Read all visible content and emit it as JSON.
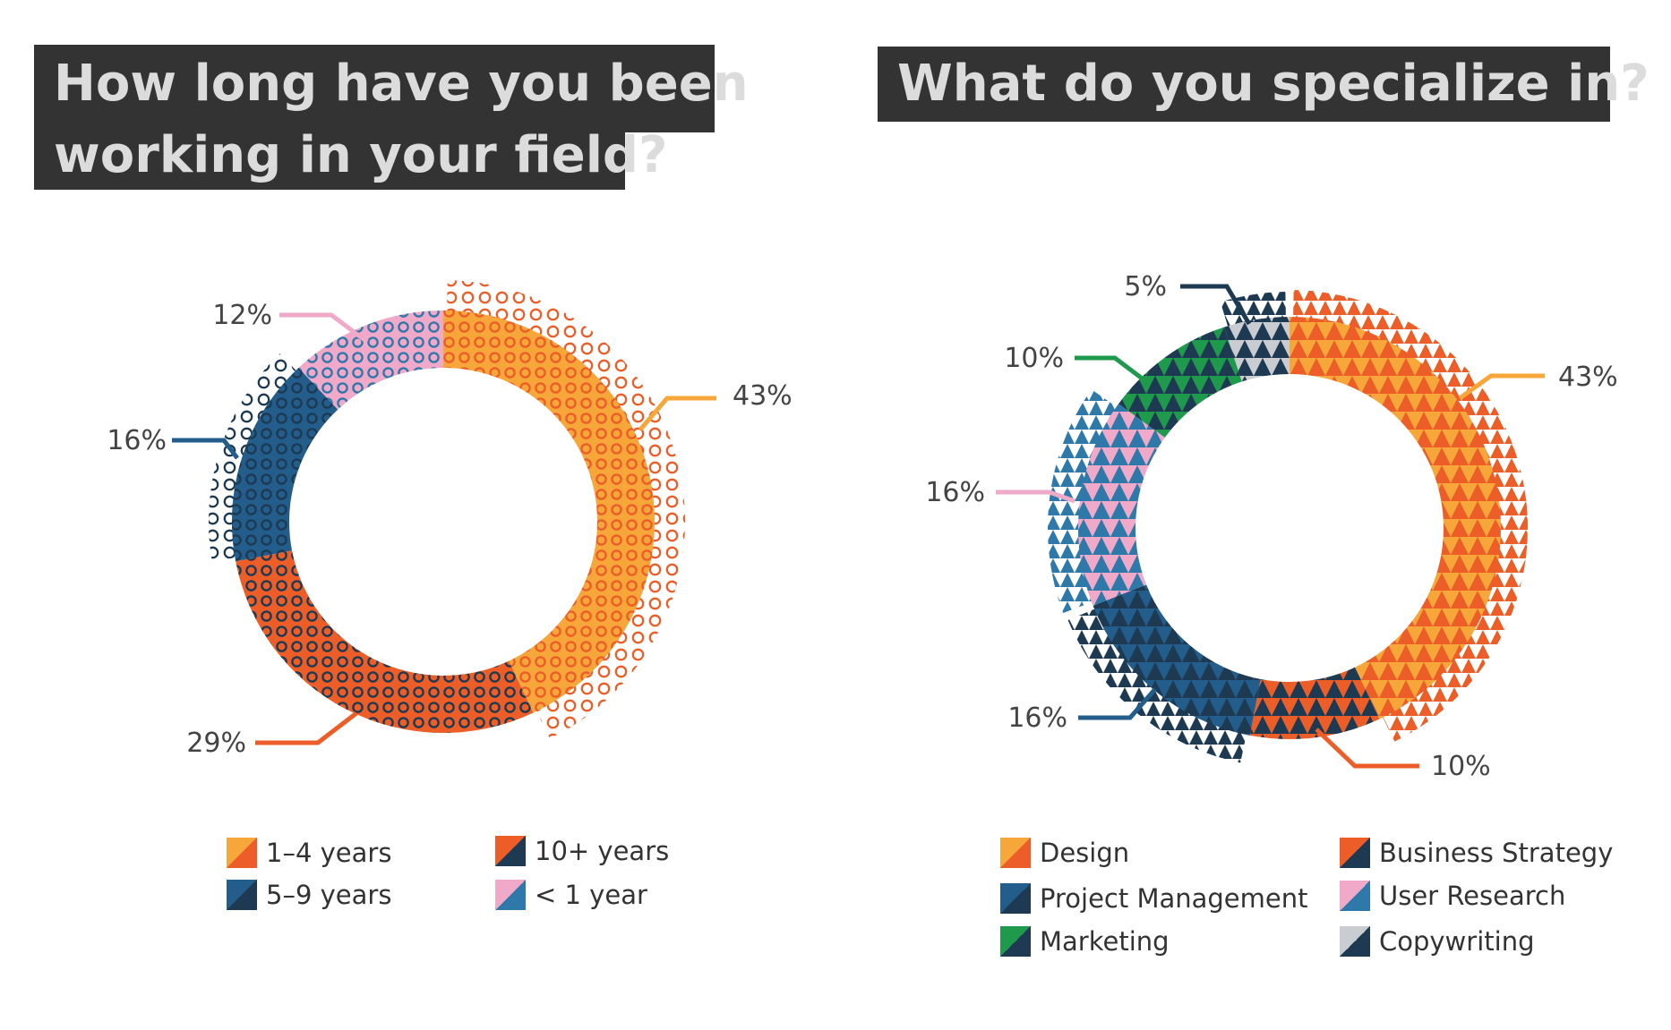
{
  "chart_data": [
    {
      "type": "pie",
      "title": "How long have you been working in your field?",
      "title_lines": [
        "How long have you been",
        "working in your field?"
      ],
      "categories": [
        "1–4 years",
        "10+ years",
        "5–9 years",
        "< 1 year"
      ],
      "values": [
        43,
        29,
        16,
        12
      ],
      "value_labels": [
        "43%",
        "29%",
        "16%",
        "12%"
      ],
      "colors": [
        {
          "primary": "#f7a63a",
          "secondary": "#ec5d27"
        },
        {
          "primary": "#ec5d27",
          "secondary": "#1d3a52"
        },
        {
          "primary": "#225d8c",
          "secondary": "#1d3a52"
        },
        {
          "primary": "#f1a9c9",
          "secondary": "#2e78aa"
        }
      ],
      "legend": {
        "placement": "bottom",
        "items": [
          {
            "label": "1–4 years"
          },
          {
            "label": "10+ years"
          },
          {
            "label": "5–9 years"
          },
          {
            "label": "< 1 year"
          }
        ]
      }
    },
    {
      "type": "pie",
      "title": "What do you specialize in?",
      "title_lines": [
        "What do you specialize in?"
      ],
      "categories": [
        "Design",
        "Business Strategy",
        "Project Management",
        "User Research",
        "Marketing",
        "Copywriting"
      ],
      "values": [
        43,
        10,
        16,
        16,
        10,
        5
      ],
      "value_labels": [
        "43%",
        "10%",
        "16%",
        "16%",
        "10%",
        "5%"
      ],
      "colors": [
        {
          "primary": "#f7a63a",
          "secondary": "#ec5d27"
        },
        {
          "primary": "#ec5d27",
          "secondary": "#1d3a52"
        },
        {
          "primary": "#225d8c",
          "secondary": "#1d3a52"
        },
        {
          "primary": "#f1a9c9",
          "secondary": "#2e78aa"
        },
        {
          "primary": "#1f9a4d",
          "secondary": "#1d3a52"
        },
        {
          "primary": "#c9ccd0",
          "secondary": "#1d3a52"
        }
      ],
      "legend": {
        "placement": "bottom",
        "items": [
          {
            "label": "Design"
          },
          {
            "label": "Project Management"
          },
          {
            "label": "Marketing"
          },
          {
            "label": "Business Strategy"
          },
          {
            "label": "User Research"
          },
          {
            "label": "Copywriting"
          }
        ]
      }
    }
  ]
}
